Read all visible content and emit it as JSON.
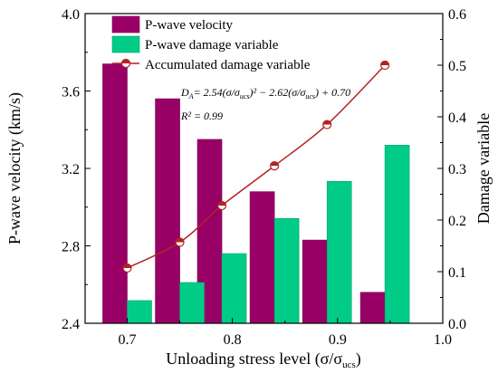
{
  "chart_data": {
    "type": "bar",
    "xlabel": "Unloading stress level (σ/σ",
    "xlabel_sub": "ucs",
    "xlabel_close": ")",
    "ylabel_left": "P-wave velocity (km/s)",
    "ylabel_right": "Damage variable",
    "xlim": [
      0.66,
      1.0
    ],
    "ylim_left": [
      2.4,
      4.0
    ],
    "ylim_right": [
      0.0,
      0.6
    ],
    "x_ticks": [
      "0.7",
      "0.8",
      "0.9",
      "1.0"
    ],
    "x_tick_values": [
      0.7,
      0.8,
      0.9,
      1.0
    ],
    "y_left_ticks": [
      "2.4",
      "2.8",
      "3.2",
      "3.6",
      "4.0"
    ],
    "y_left_tick_values": [
      2.4,
      2.8,
      3.2,
      3.6,
      4.0
    ],
    "y_right_ticks": [
      "0.0",
      "0.1",
      "0.2",
      "0.3",
      "0.4",
      "0.5",
      "0.6"
    ],
    "y_right_tick_values": [
      0.0,
      0.1,
      0.2,
      0.3,
      0.4,
      0.5,
      0.6
    ],
    "x": [
      0.7,
      0.75,
      0.79,
      0.84,
      0.89,
      0.945
    ],
    "series": [
      {
        "name": "P-wave velocity",
        "axis": "left",
        "type": "bar",
        "color": "#990066",
        "values": [
          3.74,
          3.56,
          3.35,
          3.08,
          2.83,
          2.56
        ]
      },
      {
        "name": "P-wave damage variable",
        "axis": "right",
        "type": "bar",
        "color": "#00cc88",
        "values": [
          0.044,
          0.079,
          0.135,
          0.203,
          0.275,
          0.345
        ]
      },
      {
        "name": "Accumulated damage variable",
        "axis": "right",
        "type": "line+scatter",
        "color": "#b22222",
        "values": [
          0.107,
          0.157,
          0.228,
          0.305,
          0.385,
          0.5
        ]
      }
    ],
    "legend_position": "top-left",
    "annotations": {
      "equation_prefix": "D",
      "equation_prefix_sub": "A",
      "equation_body": "= 2.54(σ/σ",
      "equation_sub1": "ucs",
      "equation_mid": ")² − 2.62(σ/σ",
      "equation_sub2": "ucs",
      "equation_end": ") + 0.70",
      "r2_label": "R",
      "r2_value": "² = 0.99"
    }
  }
}
